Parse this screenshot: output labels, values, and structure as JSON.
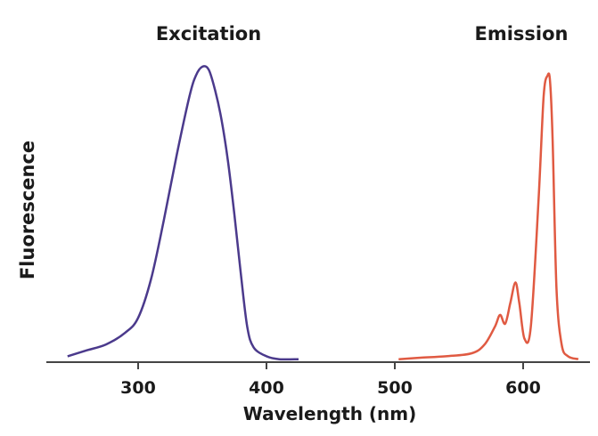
{
  "chart_data": {
    "type": "line",
    "title": "",
    "xlabel": "Wavelength (nm)",
    "ylabel": "Fluorescence",
    "xlim": [
      220,
      650
    ],
    "ylim": [
      0,
      1
    ],
    "xticks": [
      300,
      400,
      500,
      600
    ],
    "xtick_labels": [
      "300",
      "400",
      "500",
      "600"
    ],
    "grid": false,
    "series": [
      {
        "name": "Excitation",
        "color": "#4b3a8c",
        "x": [
          245,
          260,
          275,
          290,
          300,
          310,
          320,
          330,
          340,
          345,
          350,
          355,
          360,
          365,
          370,
          375,
          380,
          385,
          390,
          400,
          410,
          425
        ],
        "y": [
          0.02,
          0.04,
          0.06,
          0.1,
          0.15,
          0.28,
          0.48,
          0.7,
          0.9,
          0.97,
          1.0,
          0.99,
          0.92,
          0.82,
          0.68,
          0.5,
          0.3,
          0.12,
          0.05,
          0.02,
          0.01,
          0.01
        ]
      },
      {
        "name": "Emission",
        "color": "#e05a42",
        "x": [
          503,
          520,
          540,
          560,
          570,
          578,
          582,
          586,
          590,
          594,
          597,
          601,
          606,
          612,
          616,
          619,
          621,
          623,
          626,
          630,
          635,
          643
        ],
        "y": [
          0.01,
          0.015,
          0.02,
          0.03,
          0.06,
          0.12,
          0.16,
          0.13,
          0.2,
          0.27,
          0.2,
          0.08,
          0.12,
          0.55,
          0.9,
          0.97,
          0.95,
          0.75,
          0.25,
          0.06,
          0.02,
          0.01
        ]
      }
    ]
  }
}
